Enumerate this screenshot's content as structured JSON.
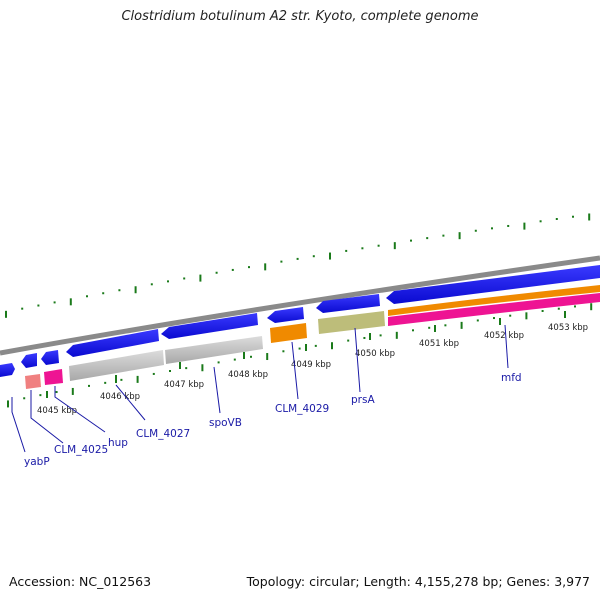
{
  "title": "Clostridium botulinum A2 str. Kyoto, complete genome",
  "footer": {
    "accession": "Accession: NC_012563",
    "summary": "Topology: circular; Length: 4,155,278 bp; Genes: 3,977"
  },
  "scale_labels": [
    "4045 kbp",
    "4046 kbp",
    "4047 kbp",
    "4048 kbp",
    "4049 kbp",
    "4050 kbp",
    "4051 kbp",
    "4052 kbp",
    "4053 kbp"
  ],
  "gene_labels": [
    "yabP",
    "CLM_4025",
    "hup",
    "CLM_4027",
    "spoVB",
    "CLM_4029",
    "prsA",
    "mfd"
  ],
  "colors": {
    "backbone": "#8a8a8a",
    "cds": "#1010e6",
    "gray_feature": "#c0c0c0",
    "orange_feature": "#f08a00",
    "olive_feature": "#bdbd7a",
    "pink_feature": "#ee1493",
    "salmon_feature": "#f08080",
    "tick": "#1a7a1a",
    "label": "#1a1aa6"
  }
}
